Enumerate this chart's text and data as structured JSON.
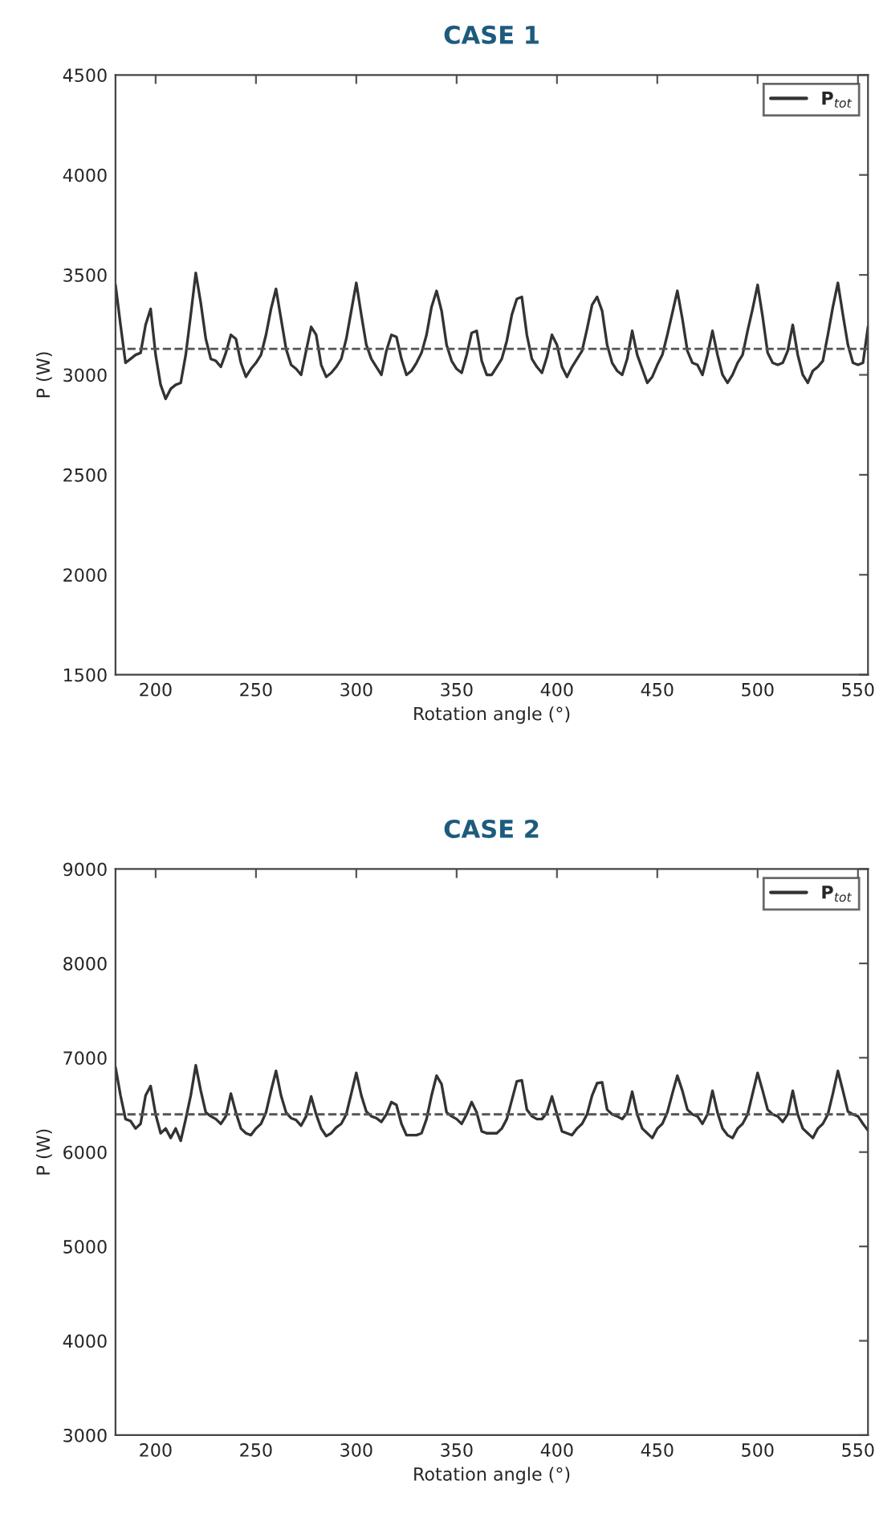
{
  "chart_data": [
    {
      "type": "line",
      "title": "CASE 1",
      "xlabel": "Rotation angle (°)",
      "ylabel": "P (W)",
      "xlim": [
        180,
        555
      ],
      "xticks": [
        200,
        250,
        300,
        350,
        400,
        450,
        500,
        550
      ],
      "ylim": [
        1500,
        4500
      ],
      "yticks": [
        1500,
        2000,
        2500,
        3000,
        3500,
        4000,
        4500
      ],
      "grid": false,
      "legend": "top right",
      "marker": "none",
      "line_style": "solid",
      "ref_lines": [
        {
          "axis": "y",
          "value": 3130,
          "color": "#555555",
          "line_style": "dashed"
        }
      ],
      "series": [
        {
          "name": "P$_{tot}$",
          "color": "#333333",
          "x": [
            180,
            182.5,
            185,
            187.5,
            190,
            192.5,
            195,
            197.5,
            200,
            202.5,
            205,
            207.5,
            210,
            212.5,
            215,
            217.5,
            220,
            222.5,
            225,
            227.5,
            230,
            232.5,
            235,
            237.5,
            240,
            242.5,
            245,
            247.5,
            250,
            252.5,
            255,
            257.5,
            260,
            262.5,
            265,
            267.5,
            270,
            272.5,
            275,
            277.5,
            280,
            282.5,
            285,
            287.5,
            290,
            292.5,
            295,
            297.5,
            300,
            302.5,
            305,
            307.5,
            310,
            312.5,
            315,
            317.5,
            320,
            322.5,
            325,
            327.5,
            330,
            332.5,
            335,
            337.5,
            340,
            342.5,
            345,
            347.5,
            350,
            352.5,
            355,
            357.5,
            360,
            362.5,
            365,
            367.5,
            370,
            372.5,
            375,
            377.5,
            380,
            382.5,
            385,
            387.5,
            390,
            392.5,
            395,
            397.5,
            400,
            402.5,
            405,
            407.5,
            410,
            412.5,
            415,
            417.5,
            420,
            422.5,
            425,
            427.5,
            430,
            432.5,
            435,
            437.5,
            440,
            442.5,
            445,
            447.5,
            450,
            452.5,
            455,
            457.5,
            460,
            462.5,
            465,
            467.5,
            470,
            472.5,
            475,
            477.5,
            480,
            482.5,
            485,
            487.5,
            490,
            492.5,
            495,
            497.5,
            500,
            502.5,
            505,
            507.5,
            510,
            512.5,
            515,
            517.5,
            520,
            522.5,
            525,
            527.5,
            530,
            532.5,
            535,
            537.5,
            540,
            542.5,
            545,
            547.5,
            550,
            552.5,
            555
          ],
          "values": [
            3450,
            3250,
            3060,
            3080,
            3100,
            3110,
            3250,
            3330,
            3100,
            2950,
            2880,
            2930,
            2950,
            2960,
            3100,
            3300,
            3510,
            3360,
            3180,
            3080,
            3070,
            3040,
            3110,
            3200,
            3180,
            3060,
            2990,
            3030,
            3060,
            3100,
            3200,
            3330,
            3430,
            3280,
            3130,
            3050,
            3030,
            3000,
            3120,
            3240,
            3200,
            3050,
            2990,
            3010,
            3040,
            3080,
            3180,
            3320,
            3460,
            3300,
            3150,
            3080,
            3040,
            3000,
            3120,
            3200,
            3190,
            3080,
            3000,
            3020,
            3060,
            3110,
            3200,
            3340,
            3420,
            3320,
            3150,
            3070,
            3030,
            3010,
            3100,
            3210,
            3220,
            3070,
            3000,
            3000,
            3040,
            3080,
            3170,
            3300,
            3380,
            3390,
            3200,
            3080,
            3040,
            3010,
            3090,
            3200,
            3150,
            3040,
            2990,
            3040,
            3080,
            3120,
            3230,
            3350,
            3390,
            3320,
            3150,
            3060,
            3020,
            3000,
            3080,
            3220,
            3100,
            3030,
            2960,
            2990,
            3050,
            3100,
            3200,
            3310,
            3420,
            3280,
            3120,
            3060,
            3050,
            3000,
            3100,
            3220,
            3100,
            3000,
            2960,
            3000,
            3060,
            3100,
            3220,
            3330,
            3450,
            3290,
            3110,
            3060,
            3050,
            3060,
            3120,
            3250,
            3100,
            3000,
            2960,
            3020,
            3040,
            3070,
            3200,
            3340,
            3460,
            3300,
            3150,
            3060,
            3050,
            3060,
            3240
          ]
        }
      ]
    },
    {
      "type": "line",
      "title": "CASE 2",
      "xlabel": "Rotation angle (°)",
      "ylabel": "P (W)",
      "xlim": [
        180,
        555
      ],
      "xticks": [
        200,
        250,
        300,
        350,
        400,
        450,
        500,
        550
      ],
      "ylim": [
        3000,
        9000
      ],
      "yticks": [
        3000,
        4000,
        5000,
        6000,
        7000,
        8000,
        9000
      ],
      "grid": false,
      "legend": "top right",
      "marker": "none",
      "line_style": "solid",
      "ref_lines": [
        {
          "axis": "y",
          "value": 6400,
          "color": "#555555",
          "line_style": "dashed"
        }
      ],
      "series": [
        {
          "name": "P$_{tot}$",
          "color": "#333333",
          "x": [
            180,
            182.5,
            185,
            187.5,
            190,
            192.5,
            195,
            197.5,
            200,
            202.5,
            205,
            207.5,
            210,
            212.5,
            215,
            217.5,
            220,
            222.5,
            225,
            227.5,
            230,
            232.5,
            235,
            237.5,
            240,
            242.5,
            245,
            247.5,
            250,
            252.5,
            255,
            257.5,
            260,
            262.5,
            265,
            267.5,
            270,
            272.5,
            275,
            277.5,
            280,
            282.5,
            285,
            287.5,
            290,
            292.5,
            295,
            297.5,
            300,
            302.5,
            305,
            307.5,
            310,
            312.5,
            315,
            317.5,
            320,
            322.5,
            325,
            327.5,
            330,
            332.5,
            335,
            337.5,
            340,
            342.5,
            345,
            347.5,
            350,
            352.5,
            355,
            357.5,
            360,
            362.5,
            365,
            367.5,
            370,
            372.5,
            375,
            377.5,
            380,
            382.5,
            385,
            387.5,
            390,
            392.5,
            395,
            397.5,
            400,
            402.5,
            405,
            407.5,
            410,
            412.5,
            415,
            417.5,
            420,
            422.5,
            425,
            427.5,
            430,
            432.5,
            435,
            437.5,
            440,
            442.5,
            445,
            447.5,
            450,
            452.5,
            455,
            457.5,
            460,
            462.5,
            465,
            467.5,
            470,
            472.5,
            475,
            477.5,
            480,
            482.5,
            485,
            487.5,
            490,
            492.5,
            495,
            497.5,
            500,
            502.5,
            505,
            507.5,
            510,
            512.5,
            515,
            517.5,
            520,
            522.5,
            525,
            527.5,
            530,
            532.5,
            535,
            537.5,
            540,
            542.5,
            545,
            547.5,
            550,
            552.5,
            555
          ],
          "values": [
            6900,
            6600,
            6350,
            6330,
            6250,
            6300,
            6600,
            6700,
            6400,
            6200,
            6250,
            6150,
            6250,
            6120,
            6350,
            6600,
            6920,
            6650,
            6420,
            6380,
            6350,
            6300,
            6380,
            6620,
            6420,
            6250,
            6200,
            6180,
            6250,
            6300,
            6420,
            6650,
            6860,
            6600,
            6420,
            6360,
            6340,
            6280,
            6380,
            6590,
            6400,
            6250,
            6170,
            6200,
            6260,
            6300,
            6400,
            6620,
            6840,
            6600,
            6430,
            6380,
            6360,
            6320,
            6400,
            6530,
            6500,
            6300,
            6180,
            6180,
            6180,
            6200,
            6350,
            6600,
            6810,
            6720,
            6420,
            6380,
            6350,
            6300,
            6400,
            6530,
            6420,
            6220,
            6200,
            6200,
            6200,
            6250,
            6350,
            6550,
            6750,
            6760,
            6450,
            6380,
            6350,
            6350,
            6420,
            6590,
            6400,
            6220,
            6200,
            6180,
            6250,
            6300,
            6400,
            6600,
            6730,
            6740,
            6450,
            6400,
            6380,
            6350,
            6420,
            6640,
            6400,
            6250,
            6200,
            6150,
            6250,
            6300,
            6420,
            6620,
            6810,
            6650,
            6450,
            6400,
            6380,
            6300,
            6400,
            6650,
            6420,
            6250,
            6180,
            6150,
            6250,
            6300,
            6400,
            6620,
            6840,
            6650,
            6450,
            6400,
            6380,
            6320,
            6400,
            6650,
            6400,
            6250,
            6200,
            6150,
            6250,
            6300,
            6400,
            6620,
            6860,
            6650,
            6430,
            6400,
            6380,
            6300,
            6230
          ]
        }
      ]
    }
  ]
}
